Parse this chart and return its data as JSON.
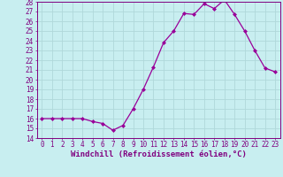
{
  "x": [
    0,
    1,
    2,
    3,
    4,
    5,
    6,
    7,
    8,
    9,
    10,
    11,
    12,
    13,
    14,
    15,
    16,
    17,
    18,
    19,
    20,
    21,
    22,
    23
  ],
  "y": [
    16.0,
    16.0,
    16.0,
    16.0,
    16.0,
    15.7,
    15.5,
    14.8,
    15.3,
    17.0,
    19.0,
    21.3,
    23.8,
    25.0,
    26.8,
    26.7,
    27.8,
    27.3,
    28.2,
    26.7,
    25.0,
    23.0,
    21.2,
    20.8
  ],
  "xlabel": "Windchill (Refroidissement éolien,°C)",
  "ylabel": "",
  "ylim": [
    14,
    28
  ],
  "xlim": [
    -0.5,
    23.5
  ],
  "yticks": [
    14,
    15,
    16,
    17,
    18,
    19,
    20,
    21,
    22,
    23,
    24,
    25,
    26,
    27,
    28
  ],
  "xticks": [
    0,
    1,
    2,
    3,
    4,
    5,
    6,
    7,
    8,
    9,
    10,
    11,
    12,
    13,
    14,
    15,
    16,
    17,
    18,
    19,
    20,
    21,
    22,
    23
  ],
  "line_color": "#990099",
  "marker": "D",
  "marker_size": 2.0,
  "background_color": "#c8eef0",
  "grid_color": "#b0d8da",
  "xlabel_fontsize": 6.5,
  "tick_fontsize": 5.5,
  "xlabel_color": "#800080",
  "tick_color": "#800080"
}
